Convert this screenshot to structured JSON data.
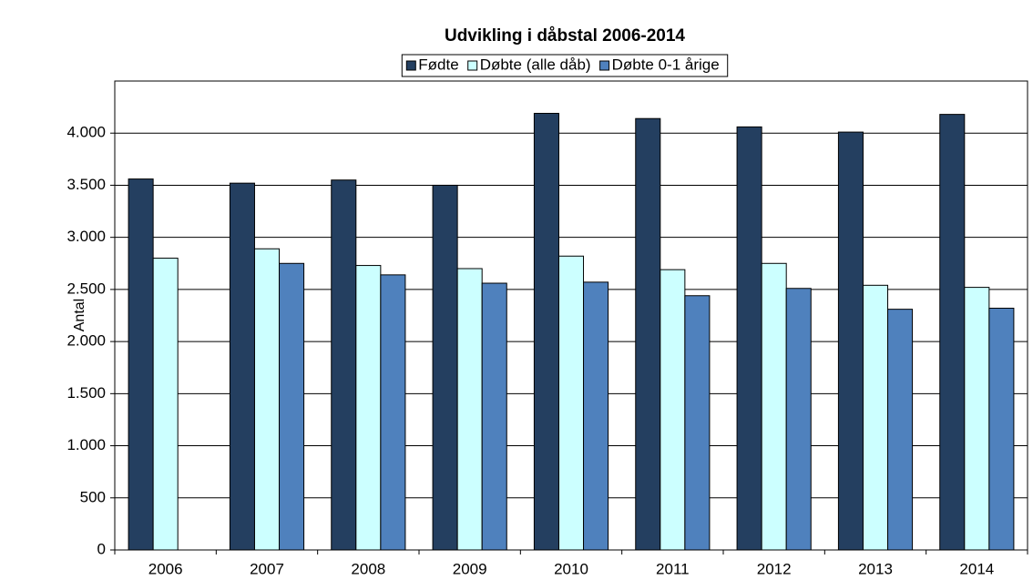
{
  "chart_data": {
    "type": "bar",
    "title": "Udvikling i dåbstal 2006-2014",
    "y_label": "Antal",
    "categories": [
      "2006",
      "2007",
      "2008",
      "2009",
      "2010",
      "2011",
      "2012",
      "2013",
      "2014"
    ],
    "series": [
      {
        "name": "Fødte",
        "color": "#243f60",
        "values": [
          3560,
          3520,
          3550,
          3500,
          4190,
          4140,
          4060,
          4010,
          4180
        ]
      },
      {
        "name": "Døbte (alle dåb)",
        "color": "#ccffff",
        "values": [
          2800,
          2890,
          2730,
          2700,
          2820,
          2690,
          2750,
          2540,
          2520
        ]
      },
      {
        "name": "Døbte 0-1 årige",
        "color": "#4f81bd",
        "values": [
          null,
          2750,
          2640,
          2560,
          2570,
          2440,
          2510,
          2310,
          2320
        ]
      }
    ],
    "ylim": [
      0,
      4500
    ],
    "yticks": [
      0,
      500,
      {
        "value": 1000,
        "label": "1.000"
      },
      {
        "value": 1500,
        "label": "1.500"
      },
      {
        "value": 2000,
        "label": "2.000"
      },
      {
        "value": 2500,
        "label": "2.500"
      },
      {
        "value": 3000,
        "label": "3.000"
      },
      {
        "value": 3500,
        "label": "3.500"
      },
      {
        "value": 4000,
        "label": "4.000"
      }
    ],
    "grid": true,
    "legend": "top"
  }
}
